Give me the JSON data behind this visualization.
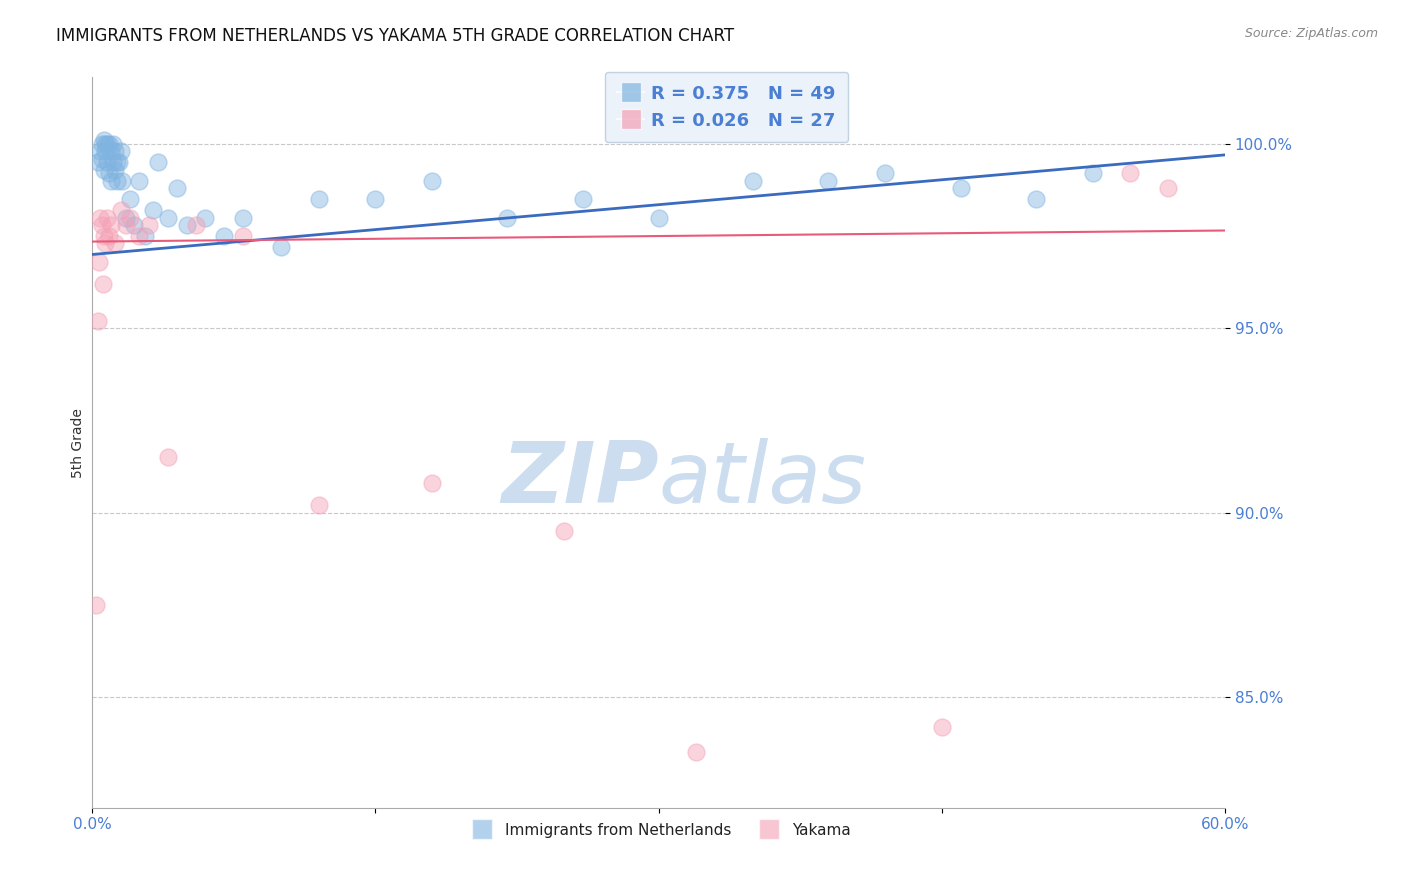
{
  "title": "IMMIGRANTS FROM NETHERLANDS VS YAKAMA 5TH GRADE CORRELATION CHART",
  "source_text": "Source: ZipAtlas.com",
  "ylabel": "5th Grade",
  "x_min": 0.0,
  "x_max": 60.0,
  "y_min": 82.0,
  "y_max": 101.8,
  "legend_blue_r": "R = 0.375",
  "legend_blue_n": "N = 49",
  "legend_pink_r": "R = 0.026",
  "legend_pink_n": "N = 27",
  "series_blue_color": "#7fb3e0",
  "series_pink_color": "#f4a0b5",
  "line_blue_color": "#3a6bbf",
  "line_pink_color": "#e85a7a",
  "grid_color": "#c8c8c8",
  "title_color": "#111111",
  "tick_label_color": "#4a7fd4",
  "watermark_color": "#ccddf0",
  "blue_line_x0": 0.0,
  "blue_line_y0": 97.0,
  "blue_line_x1": 60.0,
  "blue_line_y1": 99.7,
  "pink_line_x0": 0.0,
  "pink_line_y0": 97.35,
  "pink_line_x1": 60.0,
  "pink_line_y1": 97.65,
  "blue_points_x": [
    0.3,
    0.4,
    0.5,
    0.5,
    0.6,
    0.6,
    0.7,
    0.7,
    0.8,
    0.8,
    0.9,
    0.9,
    1.0,
    1.0,
    1.1,
    1.1,
    1.2,
    1.2,
    1.3,
    1.3,
    1.4,
    1.5,
    1.6,
    1.8,
    2.0,
    2.2,
    2.5,
    2.8,
    3.2,
    3.5,
    4.0,
    4.5,
    5.0,
    6.0,
    7.0,
    8.0,
    10.0,
    12.0,
    15.0,
    18.0,
    22.0,
    26.0,
    30.0,
    35.0,
    39.0,
    42.0,
    46.0,
    50.0,
    53.0
  ],
  "blue_points_y": [
    99.5,
    99.8,
    100.0,
    99.6,
    100.1,
    99.3,
    100.0,
    99.8,
    100.0,
    99.5,
    100.0,
    99.2,
    99.8,
    99.0,
    100.0,
    99.5,
    99.8,
    99.3,
    99.5,
    99.0,
    99.5,
    99.8,
    99.0,
    98.0,
    98.5,
    97.8,
    99.0,
    97.5,
    98.2,
    99.5,
    98.0,
    98.8,
    97.8,
    98.0,
    97.5,
    98.0,
    97.2,
    98.5,
    98.5,
    99.0,
    98.0,
    98.5,
    98.0,
    99.0,
    99.0,
    99.2,
    98.8,
    98.5,
    99.2
  ],
  "pink_points_x": [
    0.2,
    0.3,
    0.4,
    0.5,
    0.6,
    0.7,
    0.8,
    0.9,
    1.0,
    1.2,
    1.5,
    1.8,
    2.0,
    2.5,
    3.0,
    4.0,
    5.5,
    8.0,
    12.0,
    18.0,
    25.0,
    32.0,
    45.0,
    55.0,
    57.0,
    0.35,
    0.55
  ],
  "pink_points_y": [
    87.5,
    95.2,
    98.0,
    97.8,
    97.5,
    97.3,
    98.0,
    97.5,
    97.8,
    97.3,
    98.2,
    97.8,
    98.0,
    97.5,
    97.8,
    91.5,
    97.8,
    97.5,
    90.2,
    90.8,
    89.5,
    83.5,
    84.2,
    99.2,
    98.8,
    96.8,
    96.2
  ]
}
